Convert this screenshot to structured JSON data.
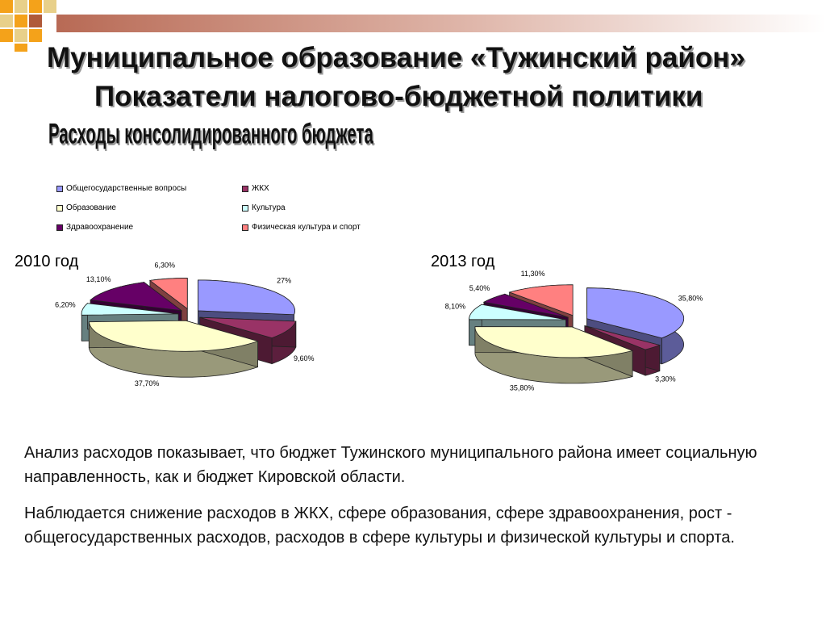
{
  "slide": {
    "title_line1": "Муниципальное образование «Тужинский район»",
    "title_line2": "Показатели налогово-бюджетной политики",
    "subtitle": "Расходы консолидированного бюджета",
    "paragraph1": "Анализ расходов показывает, что бюджет Тужинского муниципального района имеет социальную направленность, как и бюджет Кировской области.",
    "paragraph2": "Наблюдается снижение расходов в ЖКХ, сфере образования, сфере здравоохранения, рост - общегосударственных расходов, расходов в сфере культуры и физической культуры и спорта.",
    "accent_colors": [
      "#F4A21A",
      "#E8D08A",
      "#B05A3A"
    ]
  },
  "chart_data": [
    {
      "type": "pie",
      "title": "2010 год",
      "categories": [
        "Общегосударственные вопросы",
        "ЖКХ",
        "Образование",
        "Культура",
        "Здравоохранение",
        "Физическая культура и спорт"
      ],
      "values": [
        27.0,
        9.6,
        37.7,
        6.2,
        13.1,
        6.3
      ],
      "labels": [
        "27%",
        "9,60%",
        "37,70%",
        "6,20%",
        "13,10%",
        "6,30%"
      ],
      "colors": [
        "#9999FF",
        "#993366",
        "#FFFFCC",
        "#CCFFFF",
        "#660066",
        "#FF8080"
      ],
      "legend_position": "top",
      "style": "3d-exploded"
    },
    {
      "type": "pie",
      "title": "2013 год",
      "categories": [
        "Общегосударственные вопросы",
        "ЖКХ",
        "Образование",
        "Культура",
        "Здравоохранение",
        "Физическая культура и спорт"
      ],
      "values": [
        35.8,
        3.3,
        35.8,
        8.1,
        5.4,
        11.3
      ],
      "labels": [
        "35,80%",
        "3,30%",
        "35,80%",
        "8,10%",
        "5,40%",
        "11,30%"
      ],
      "colors": [
        "#9999FF",
        "#993366",
        "#FFFFCC",
        "#CCFFFF",
        "#660066",
        "#FF8080"
      ],
      "legend_position": "top",
      "style": "3d-exploded"
    }
  ]
}
